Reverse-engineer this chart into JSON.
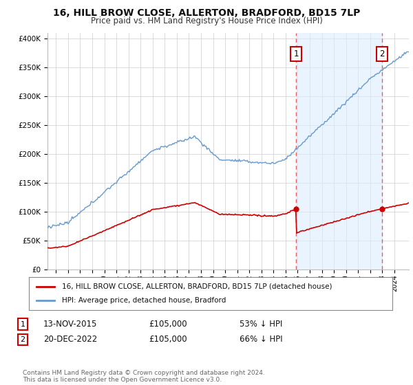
{
  "title": "16, HILL BROW CLOSE, ALLERTON, BRADFORD, BD15 7LP",
  "subtitle": "Price paid vs. HM Land Registry's House Price Index (HPI)",
  "footer": "Contains HM Land Registry data © Crown copyright and database right 2024.\nThis data is licensed under the Open Government Licence v3.0.",
  "legend_line1": "16, HILL BROW CLOSE, ALLERTON, BRADFORD, BD15 7LP (detached house)",
  "legend_line2": "HPI: Average price, detached house, Bradford",
  "sale1_label": "1",
  "sale1_date": "13-NOV-2015",
  "sale1_price": "£105,000",
  "sale1_note": "53% ↓ HPI",
  "sale2_label": "2",
  "sale2_date": "20-DEC-2022",
  "sale2_price": "£105,000",
  "sale2_note": "66% ↓ HPI",
  "sale1_x": 2015.87,
  "sale2_x": 2022.97,
  "sale1_y": 105000,
  "sale2_y": 105000,
  "red_color": "#cc0000",
  "blue_color": "#6699cc",
  "dashed_color": "#e06060",
  "fill_color": "#ddeeff",
  "background": "#ffffff",
  "grid_color": "#cccccc",
  "ylim": [
    0,
    410000
  ],
  "xlim_start": 1995.3,
  "xlim_end": 2025.2
}
